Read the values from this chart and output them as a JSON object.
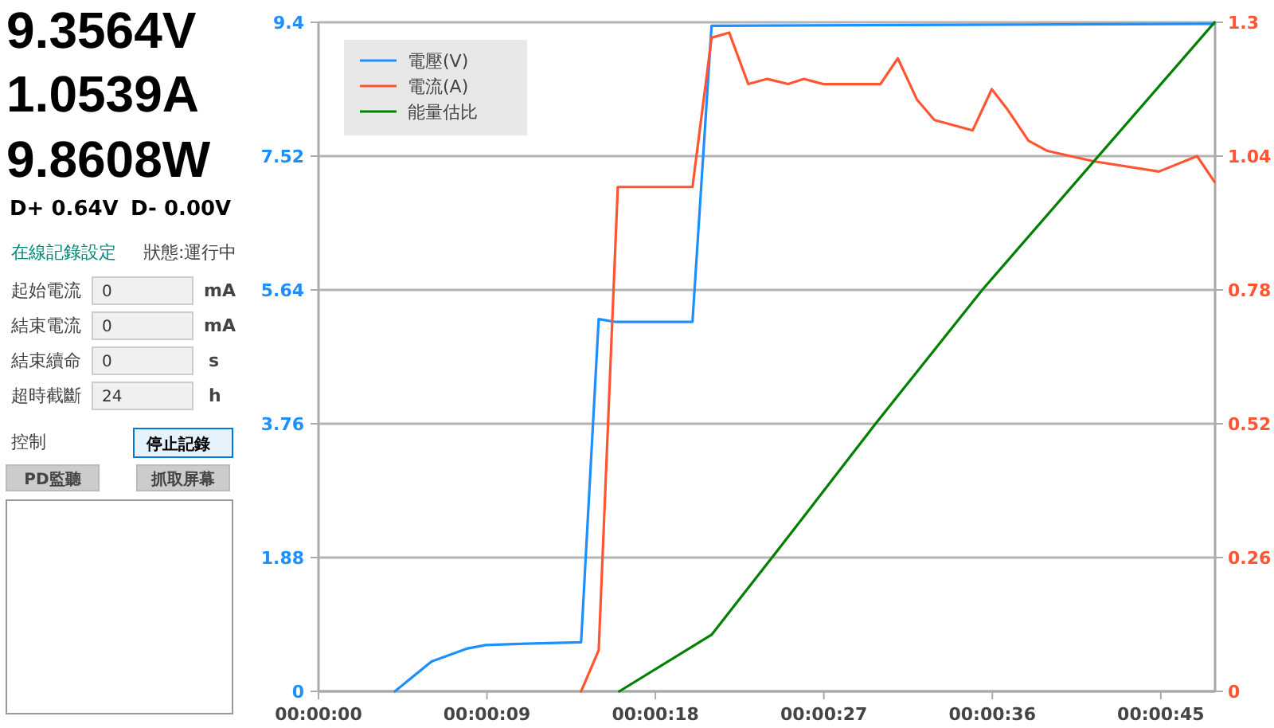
{
  "chart_data": {
    "type": "line",
    "xlim": [
      0,
      47.9
    ],
    "xticks": [
      {
        "value": 0,
        "label": "00:00:00"
      },
      {
        "value": 9,
        "label": "00:00:09"
      },
      {
        "value": 18,
        "label": "00:00:18"
      },
      {
        "value": 27,
        "label": "00:00:27"
      },
      {
        "value": 36,
        "label": "00:00:36"
      },
      {
        "value": 45,
        "label": "00:00:45"
      }
    ],
    "ylim": [
      0,
      9.4
    ],
    "yticks": [
      0,
      1.88,
      3.76,
      5.64,
      7.52,
      9.4
    ],
    "y2lim": [
      0,
      1.3
    ],
    "y2ticks": [
      0,
      0.26,
      0.52,
      0.78,
      1.04,
      1.3
    ],
    "grid": "y",
    "legend": "top left",
    "line_style": "solid",
    "series": [
      {
        "name": "電壓(V)",
        "color": "#1e8fff",
        "x": [
          4.08,
          6.04,
          7.91,
          8.93,
          11.05,
          14.03,
          14.97,
          15.9,
          19.98,
          21.0,
          47.87
        ],
        "values": [
          0,
          0.42,
          0.6,
          0.65,
          0.67,
          0.69,
          5.23,
          5.19,
          5.19,
          9.35,
          9.38
        ]
      },
      {
        "name": "電流(A)",
        "color": "#ff5533",
        "axis": "y2",
        "x": [
          14.03,
          14.97,
          15.99,
          19.98,
          21.0,
          21.94,
          22.96,
          23.98,
          25.09,
          25.94,
          26.96,
          30.02,
          30.95,
          31.97,
          32.91,
          34.95,
          35.97,
          36.82,
          37.93,
          38.95,
          41.41,
          44.9,
          46.94,
          47.87
        ],
        "values": [
          0,
          0.08,
          0.98,
          0.98,
          1.27,
          1.28,
          1.18,
          1.19,
          1.18,
          1.19,
          1.18,
          1.18,
          1.23,
          1.15,
          1.11,
          1.09,
          1.17,
          1.13,
          1.07,
          1.05,
          1.03,
          1.01,
          1.04,
          0.99
        ]
      },
      {
        "name": "能量估比",
        "color": "#008000",
        "axis": "y2",
        "x": [
          16.07,
          21.0,
          24.66,
          29.76,
          35.46,
          47.87
        ],
        "values": [
          0,
          0.11,
          0.28,
          0.52,
          0.78,
          1.3
        ]
      }
    ],
    "annotations": [
      "9.3564V",
      "1.0539A",
      "9.8608W",
      "D+ 0.64V",
      "D- 0.00V",
      "在線記錄設定",
      "狀態:運行中",
      "起始電流",
      "0",
      "mA",
      "結束電流",
      "0",
      "mA",
      "結束續命",
      "0",
      "s",
      "超時截斷",
      "24",
      "h",
      "控制",
      "停止記錄",
      "PD監聽",
      "抓取屏幕"
    ]
  }
}
